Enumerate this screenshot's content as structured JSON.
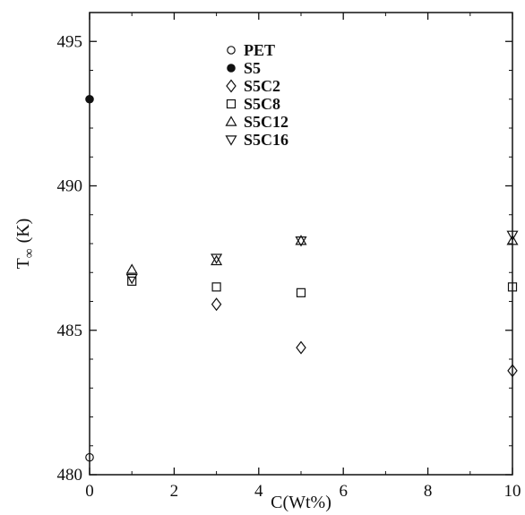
{
  "chart_data": {
    "type": "scatter",
    "xlabel": "C(Wt%)",
    "ylabel": "T",
    "ylabel_sub": "∞",
    "ylabel_unit": "(K)",
    "xlim": [
      0,
      10
    ],
    "ylim": [
      480,
      496
    ],
    "xticks": [
      0,
      2,
      4,
      6,
      8,
      10
    ],
    "yticks": [
      480,
      485,
      490,
      495
    ],
    "grid": false,
    "legend_position": "top-center",
    "series": [
      {
        "name": "PET",
        "marker": "open-circle",
        "points": [
          [
            0,
            480.6
          ]
        ]
      },
      {
        "name": "S5",
        "marker": "filled-circle",
        "points": [
          [
            0,
            493.0
          ]
        ]
      },
      {
        "name": "S5C2",
        "marker": "open-diamond",
        "points": [
          [
            3,
            485.9
          ],
          [
            5,
            484.4
          ],
          [
            10,
            483.6
          ]
        ]
      },
      {
        "name": "S5C8",
        "marker": "open-square",
        "points": [
          [
            1,
            486.7
          ],
          [
            3,
            486.5
          ],
          [
            5,
            486.3
          ],
          [
            10,
            486.5
          ]
        ]
      },
      {
        "name": "S5C12",
        "marker": "open-triangle-up",
        "points": [
          [
            1,
            487.1
          ],
          [
            3,
            487.4
          ],
          [
            5,
            488.1
          ],
          [
            10,
            488.1
          ]
        ]
      },
      {
        "name": "S5C16",
        "marker": "open-triangle-down",
        "points": [
          [
            1,
            486.8
          ],
          [
            3,
            487.5
          ],
          [
            5,
            488.1
          ],
          [
            10,
            488.3
          ]
        ]
      }
    ]
  }
}
